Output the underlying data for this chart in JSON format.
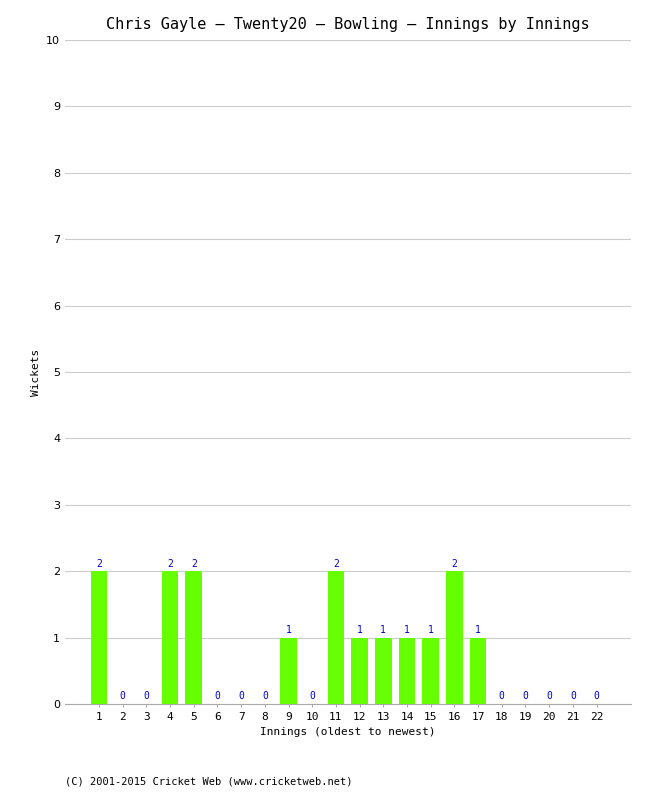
{
  "title": "Chris Gayle – Twenty20 – Bowling – Innings by Innings",
  "xlabel": "Innings (oldest to newest)",
  "ylabel": "Wickets",
  "footnote": "(C) 2001-2015 Cricket Web (www.cricketweb.net)",
  "innings": [
    1,
    2,
    3,
    4,
    5,
    6,
    7,
    8,
    9,
    10,
    11,
    12,
    13,
    14,
    15,
    16,
    17,
    18,
    19,
    20,
    21,
    22
  ],
  "wickets": [
    2,
    0,
    0,
    2,
    2,
    0,
    0,
    0,
    1,
    0,
    2,
    1,
    1,
    1,
    1,
    2,
    1,
    0,
    0,
    0,
    0,
    0
  ],
  "bar_color": "#66ff00",
  "label_color": "#0000cc",
  "background_color": "#ffffff",
  "grid_color": "#cccccc",
  "ylim": [
    0,
    10
  ],
  "yticks": [
    0,
    1,
    2,
    3,
    4,
    5,
    6,
    7,
    8,
    9,
    10
  ],
  "title_fontsize": 11,
  "axis_label_fontsize": 8,
  "tick_fontsize": 8,
  "bar_label_fontsize": 7,
  "footnote_fontsize": 7.5
}
